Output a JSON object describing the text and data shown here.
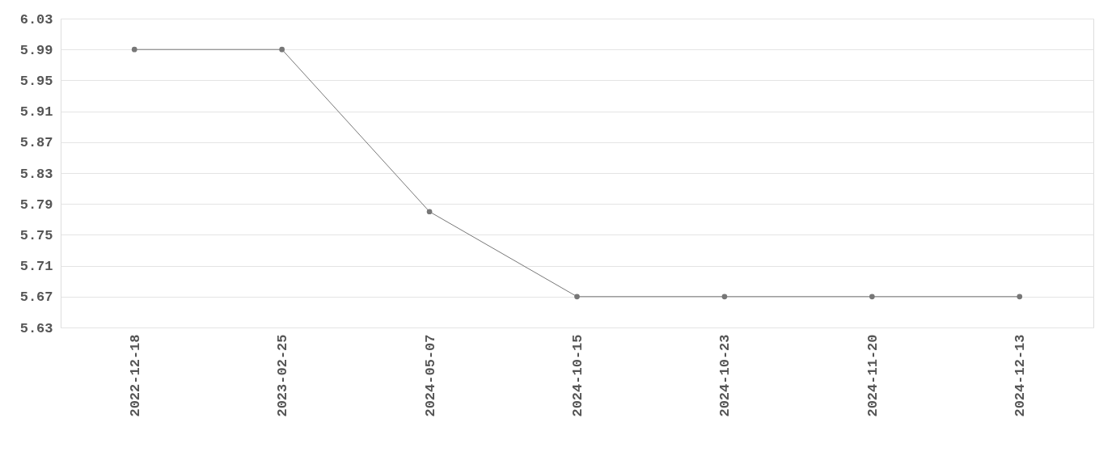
{
  "chart_data": {
    "type": "line",
    "categories": [
      "2022-12-18",
      "2023-02-25",
      "2024-05-07",
      "2024-10-15",
      "2024-10-23",
      "2024-11-20",
      "2024-12-13"
    ],
    "series": [
      {
        "color": "#777777",
        "values": [
          5.99,
          5.99,
          5.78,
          5.67,
          5.67,
          5.67,
          5.67
        ]
      }
    ],
    "ylim": [
      5.63,
      6.03
    ],
    "yticks": [
      5.63,
      5.67,
      5.71,
      5.75,
      5.79,
      5.83,
      5.87,
      5.91,
      5.95,
      5.99,
      6.03
    ],
    "grid": "y",
    "marker": "circle",
    "line_style": "solid"
  }
}
